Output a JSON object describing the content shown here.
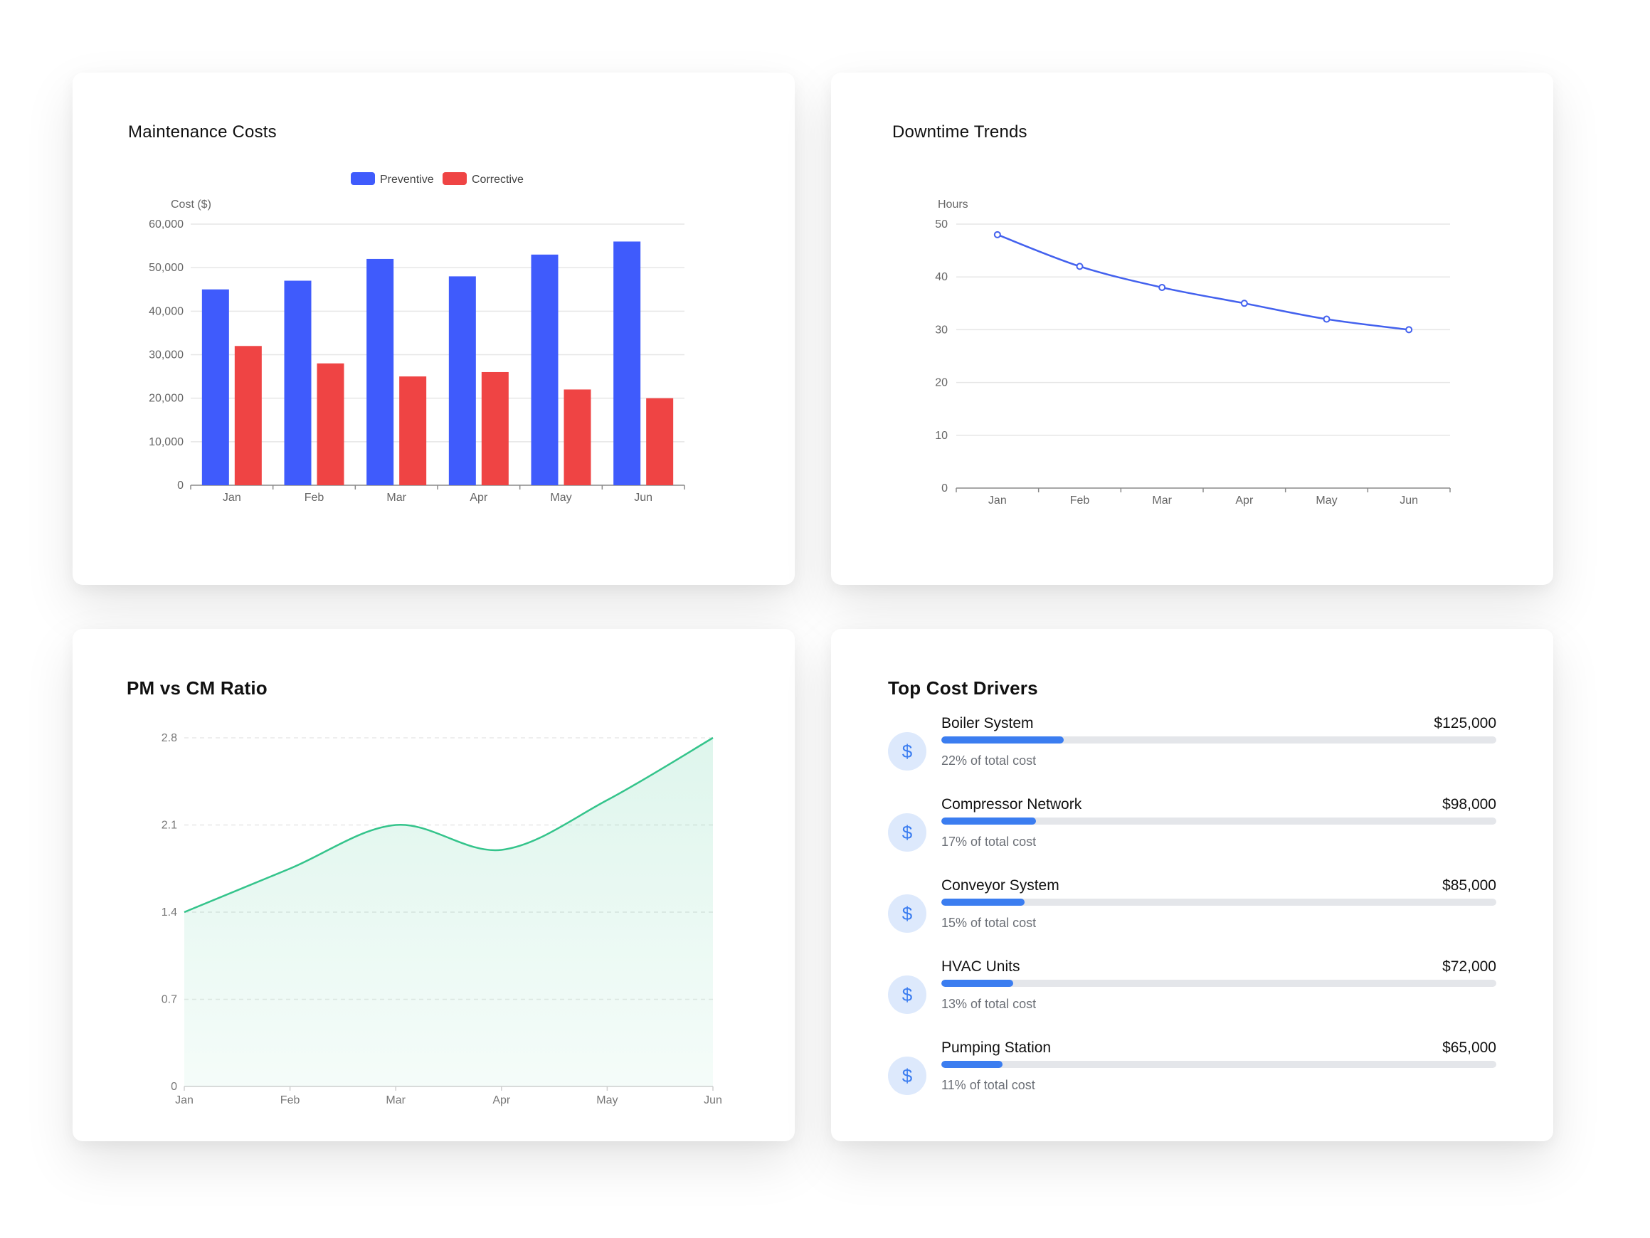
{
  "cards": {
    "costs": {
      "title": "Maintenance Costs"
    },
    "downtime": {
      "title": "Downtime Trends"
    },
    "ratio": {
      "title": "PM vs CM Ratio"
    },
    "drivers": {
      "title": "Top Cost Drivers"
    }
  },
  "chart_data": [
    {
      "type": "bar",
      "title": "Maintenance Costs",
      "ylabel": "Cost ($)",
      "xlabel": "",
      "categories": [
        "Jan",
        "Feb",
        "Mar",
        "Apr",
        "May",
        "Jun"
      ],
      "series": [
        {
          "name": "Preventive",
          "color": "#3f5bfc",
          "values": [
            45000,
            47000,
            52000,
            48000,
            53000,
            56000
          ]
        },
        {
          "name": "Corrective",
          "color": "#ef4444",
          "values": [
            32000,
            28000,
            25000,
            26000,
            22000,
            20000
          ]
        }
      ],
      "yticks": [
        "0",
        "10,000",
        "20,000",
        "30,000",
        "40,000",
        "50,000",
        "60,000"
      ],
      "ylim": [
        0,
        60000
      ],
      "legend": "top-center",
      "grid": true
    },
    {
      "type": "line",
      "title": "Downtime Trends",
      "ylabel": "Hours",
      "xlabel": "",
      "categories": [
        "Jan",
        "Feb",
        "Mar",
        "Apr",
        "May",
        "Jun"
      ],
      "series": [
        {
          "color": "#4361ee",
          "values": [
            48,
            42,
            38,
            35,
            32,
            30
          ]
        }
      ],
      "yticks": [
        "0",
        "10",
        "20",
        "30",
        "40",
        "50"
      ],
      "ylim": [
        0,
        50
      ],
      "grid": true
    },
    {
      "type": "area",
      "title": "PM vs CM Ratio",
      "ylabel": "",
      "xlabel": "",
      "categories": [
        "Jan",
        "Feb",
        "Mar",
        "Apr",
        "May",
        "Jun"
      ],
      "series": [
        {
          "color": "#34c48b",
          "values": [
            1.4,
            1.75,
            2.1,
            1.9,
            2.3,
            2.8
          ]
        }
      ],
      "yticks": [
        "0",
        "0.7",
        "1.4",
        "2.1",
        "2.8"
      ],
      "ylim": [
        0,
        2.8
      ],
      "grid": true
    }
  ],
  "drivers": [
    {
      "name": "Boiler System",
      "amount": "$125,000",
      "pct_text": "22% of total cost",
      "share": 0.22
    },
    {
      "name": "Compressor Network",
      "amount": "$98,000",
      "pct_text": "17% of total cost",
      "share": 0.17
    },
    {
      "name": "Conveyor System",
      "amount": "$85,000",
      "pct_text": "15% of total cost",
      "share": 0.15
    },
    {
      "name": "HVAC Units",
      "amount": "$72,000",
      "pct_text": "13% of total cost",
      "share": 0.13
    },
    {
      "name": "Pumping Station",
      "amount": "$65,000",
      "pct_text": "11% of total cost",
      "share": 0.11
    }
  ],
  "icons": {
    "driver_icon": "dollar-icon",
    "driver_glyph": "$"
  }
}
